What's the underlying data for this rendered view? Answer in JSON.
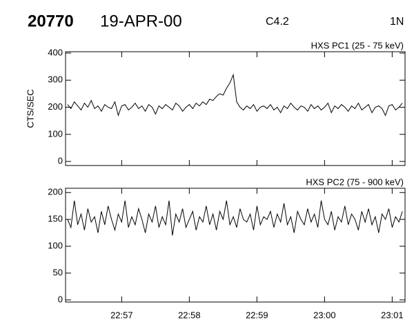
{
  "header": {
    "id": "20770",
    "date": "19-APR-00",
    "class": "C4.2",
    "code": "1N"
  },
  "chart_data": [
    {
      "type": "line",
      "title": "HXS PC1 (25 - 75 keV)",
      "y_label": "CTS/SEC",
      "x": [
        56.2,
        56.25,
        56.3,
        56.35,
        56.4,
        56.45,
        56.5,
        56.55,
        56.6,
        56.65,
        56.7,
        56.75,
        56.8,
        56.85,
        56.9,
        56.95,
        57.0,
        57.05,
        57.1,
        57.15,
        57.2,
        57.25,
        57.3,
        57.35,
        57.4,
        57.45,
        57.5,
        57.55,
        57.6,
        57.65,
        57.7,
        57.75,
        57.8,
        57.85,
        57.9,
        57.95,
        58.0,
        58.05,
        58.1,
        58.15,
        58.2,
        58.25,
        58.3,
        58.35,
        58.4,
        58.45,
        58.5,
        58.55,
        58.6,
        58.65,
        58.7,
        58.75,
        58.8,
        58.85,
        58.9,
        58.95,
        59.0,
        59.05,
        59.1,
        59.15,
        59.2,
        59.25,
        59.3,
        59.35,
        59.4,
        59.45,
        59.5,
        59.55,
        59.6,
        59.65,
        59.7,
        59.75,
        59.8,
        59.85,
        59.9,
        59.95,
        60.0,
        60.05,
        60.1,
        60.15,
        60.2,
        60.25,
        60.3,
        60.35,
        60.4,
        60.45,
        60.5,
        60.55,
        60.6,
        60.65,
        60.7,
        60.75,
        60.8,
        60.85,
        60.9,
        60.95,
        61.0,
        61.05,
        61.1,
        61.15
      ],
      "series": [
        {
          "color": "#000000",
          "values": [
            210,
            195,
            220,
            205,
            190,
            215,
            200,
            225,
            195,
            205,
            185,
            210,
            200,
            195,
            220,
            170,
            205,
            210,
            190,
            200,
            215,
            195,
            205,
            185,
            210,
            200,
            175,
            205,
            195,
            210,
            200,
            190,
            215,
            205,
            185,
            200,
            210,
            195,
            215,
            205,
            220,
            210,
            230,
            225,
            240,
            250,
            245,
            270,
            290,
            320,
            220,
            200,
            190,
            205,
            195,
            210,
            185,
            200,
            205,
            195,
            210,
            190,
            200,
            180,
            205,
            195,
            215,
            200,
            190,
            205,
            200,
            185,
            210,
            195,
            205,
            190,
            200,
            215,
            180,
            205,
            195,
            210,
            200,
            185,
            205,
            195,
            215,
            190,
            200,
            210,
            180,
            200,
            205,
            195,
            170,
            205,
            210,
            190,
            200,
            215
          ]
        }
      ],
      "xlim": [
        56.17,
        61.19
      ],
      "ylim": [
        -15,
        405
      ],
      "yticks": [
        0,
        100,
        200,
        300,
        400
      ]
    },
    {
      "type": "line",
      "title": "HXS PC2 (75 - 900 keV)",
      "x": [
        56.2,
        56.25,
        56.3,
        56.35,
        56.4,
        56.45,
        56.5,
        56.55,
        56.6,
        56.65,
        56.7,
        56.75,
        56.8,
        56.85,
        56.9,
        56.95,
        57.0,
        57.05,
        57.1,
        57.15,
        57.2,
        57.25,
        57.3,
        57.35,
        57.4,
        57.45,
        57.5,
        57.55,
        57.6,
        57.65,
        57.7,
        57.75,
        57.8,
        57.85,
        57.9,
        57.95,
        58.0,
        58.05,
        58.1,
        58.15,
        58.2,
        58.25,
        58.3,
        58.35,
        58.4,
        58.45,
        58.5,
        58.55,
        58.6,
        58.65,
        58.7,
        58.75,
        58.8,
        58.85,
        58.9,
        58.95,
        59.0,
        59.05,
        59.1,
        59.15,
        59.2,
        59.25,
        59.3,
        59.35,
        59.4,
        59.45,
        59.5,
        59.55,
        59.6,
        59.65,
        59.7,
        59.75,
        59.8,
        59.85,
        59.9,
        59.95,
        60.0,
        60.05,
        60.1,
        60.15,
        60.2,
        60.25,
        60.3,
        60.35,
        60.4,
        60.45,
        60.5,
        60.55,
        60.6,
        60.65,
        60.7,
        60.75,
        60.8,
        60.85,
        60.9,
        60.95,
        61.0,
        61.05,
        61.1,
        61.15
      ],
      "series": [
        {
          "color": "#000000",
          "values": [
            150,
            135,
            185,
            140,
            160,
            130,
            170,
            145,
            155,
            125,
            165,
            140,
            175,
            150,
            130,
            160,
            145,
            185,
            135,
            155,
            140,
            170,
            150,
            125,
            160,
            145,
            175,
            135,
            155,
            140,
            185,
            120,
            160,
            145,
            170,
            135,
            150,
            165,
            130,
            155,
            145,
            175,
            140,
            160,
            130,
            165,
            150,
            185,
            140,
            155,
            135,
            170,
            150,
            145,
            160,
            130,
            175,
            140,
            155,
            150,
            165,
            135,
            160,
            145,
            180,
            140,
            155,
            125,
            165,
            150,
            140,
            170,
            145,
            160,
            135,
            185,
            150,
            140,
            165,
            130,
            155,
            145,
            175,
            140,
            160,
            150,
            130,
            165,
            145,
            170,
            140,
            155,
            125,
            160,
            150,
            170,
            135,
            155,
            145,
            165
          ]
        }
      ],
      "xlim": [
        56.17,
        61.19
      ],
      "ylim": [
        -4,
        208
      ],
      "yticks": [
        0,
        50,
        100,
        150,
        200
      ],
      "xticks": [
        {
          "value": 57,
          "label": "22:57"
        },
        {
          "value": 58,
          "label": "22:58"
        },
        {
          "value": 59,
          "label": "22:59"
        },
        {
          "value": 60,
          "label": "23:00"
        },
        {
          "value": 61,
          "label": "23:01"
        }
      ]
    }
  ]
}
